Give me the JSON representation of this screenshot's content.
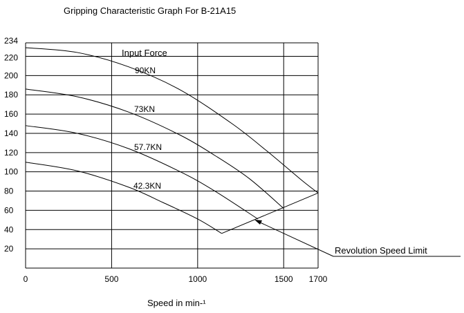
{
  "chart_data": {
    "type": "line",
    "title": "Gripping Characteristic Graph For B-21A15",
    "xlabel": "Speed in min-¹",
    "ylabel": "",
    "xlim": [
      0,
      1700
    ],
    "ylim": [
      0,
      234
    ],
    "x_ticks": [
      "0",
      "500",
      "1000",
      "1500",
      "1700"
    ],
    "y_ticks": [
      "234",
      "220",
      "200",
      "180",
      "160",
      "140",
      "120",
      "100",
      "80",
      "60",
      "40",
      "20"
    ],
    "legend_title": "Input Force",
    "grid": true,
    "series": [
      {
        "name": "90KN",
        "x": [
          0,
          300,
          600,
          900,
          1200,
          1400,
          1600,
          1700
        ],
        "y": [
          229,
          224,
          209,
          185,
          150,
          122,
          92,
          78
        ]
      },
      {
        "name": "73KN",
        "x": [
          0,
          300,
          600,
          900,
          1100,
          1300,
          1500
        ],
        "y": [
          186,
          178,
          162,
          138,
          117,
          93,
          62
        ]
      },
      {
        "name": "57.7KN",
        "x": [
          0,
          300,
          600,
          900,
          1100,
          1350
        ],
        "y": [
          148,
          140,
          124,
          100,
          80,
          51
        ]
      },
      {
        "name": "42.3KN",
        "x": [
          0,
          300,
          600,
          800,
          1000,
          1140
        ],
        "y": [
          110,
          101,
          84,
          68,
          51,
          36
        ]
      }
    ],
    "limit_line": {
      "name": "Revolution Speed Limit",
      "x": [
        1140,
        1700
      ],
      "y": [
        36,
        78
      ]
    },
    "annotation": "Revolution Speed Limit"
  }
}
